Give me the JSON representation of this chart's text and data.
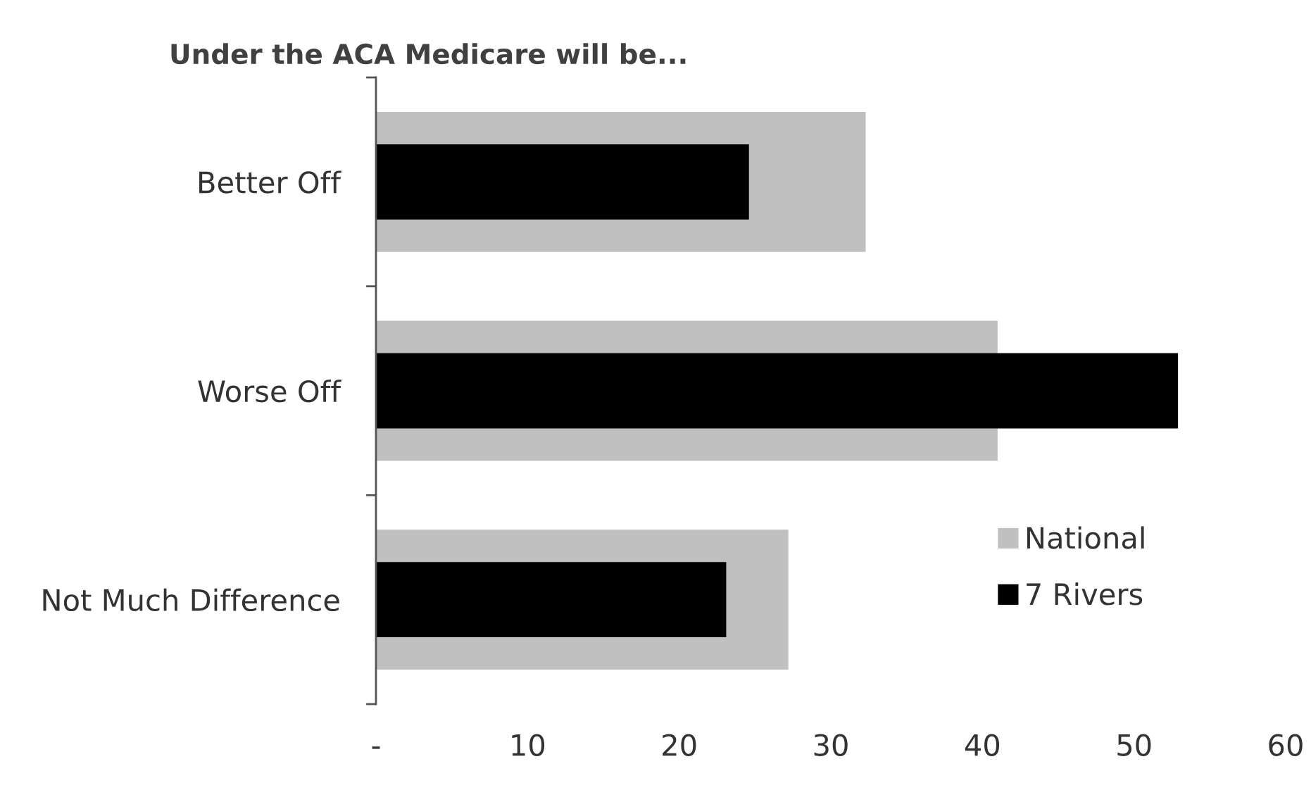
{
  "chart_data": {
    "type": "bar",
    "orientation": "horizontal",
    "title": "Under the ACA Medicare will be...",
    "categories": [
      "Better Off",
      "Worse Off",
      "Not Much Difference"
    ],
    "series": [
      {
        "name": "National",
        "color": "#c0c0c0",
        "values": [
          32.3,
          41,
          27.2
        ]
      },
      {
        "name": "7 Rivers",
        "color": "#000000",
        "values": [
          24.6,
          52.9,
          23.1
        ]
      }
    ],
    "xlim": [
      0,
      60
    ],
    "xticks": [
      {
        "value": 0,
        "label": "-"
      },
      10,
      20,
      30,
      40,
      50,
      60
    ],
    "legend": "bottom right"
  }
}
